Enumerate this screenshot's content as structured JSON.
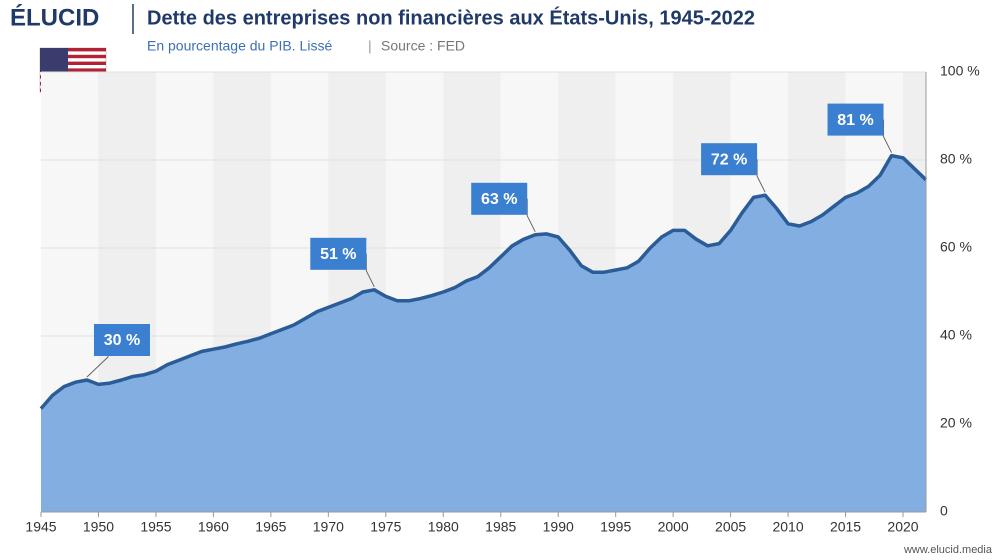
{
  "brand": "ÉLUCID",
  "footer": "www.elucid.media",
  "chart_data": {
    "type": "area",
    "title": "Dette des entreprises non financières aux États-Unis, 1945-2022",
    "subtitle": "En pourcentage du PIB. Lissé",
    "separator": "|",
    "source": "Source : FED",
    "x": [
      1945,
      1946,
      1947,
      1948,
      1949,
      1950,
      1951,
      1952,
      1953,
      1954,
      1955,
      1956,
      1957,
      1958,
      1959,
      1960,
      1961,
      1962,
      1963,
      1964,
      1965,
      1966,
      1967,
      1968,
      1969,
      1970,
      1971,
      1972,
      1973,
      1974,
      1975,
      1976,
      1977,
      1978,
      1979,
      1980,
      1981,
      1982,
      1983,
      1984,
      1985,
      1986,
      1987,
      1988,
      1989,
      1990,
      1991,
      1992,
      1993,
      1994,
      1995,
      1996,
      1997,
      1998,
      1999,
      2000,
      2001,
      2002,
      2003,
      2004,
      2005,
      2006,
      2007,
      2008,
      2009,
      2010,
      2011,
      2012,
      2013,
      2014,
      2015,
      2016,
      2017,
      2018,
      2019,
      2020,
      2021,
      2022
    ],
    "values": [
      23.5,
      26.5,
      28.5,
      29.5,
      30,
      29,
      29.3,
      30,
      30.8,
      31.2,
      32,
      33.5,
      34.5,
      35.5,
      36.5,
      37,
      37.5,
      38.2,
      38.8,
      39.5,
      40.5,
      41.5,
      42.5,
      44,
      45.5,
      46.5,
      47.5,
      48.5,
      50,
      50.5,
      49,
      48,
      48,
      48.5,
      49.2,
      50,
      51,
      52.5,
      53.5,
      55.5,
      58,
      60.5,
      62,
      63,
      63.2,
      62.5,
      59.5,
      56,
      54.5,
      54.5,
      55,
      55.5,
      57,
      60,
      62.5,
      64,
      64,
      62,
      60.5,
      61,
      64,
      68,
      71.5,
      72,
      69,
      65.5,
      65,
      66,
      67.5,
      69.5,
      71.5,
      72.5,
      74,
      76.5,
      81,
      80.5,
      78,
      75.5
    ],
    "value_labels": [
      null,
      null,
      null,
      null,
      "30 %",
      null,
      null,
      null,
      null,
      null,
      null,
      null,
      null,
      null,
      null,
      null,
      null,
      null,
      null,
      null,
      null,
      null,
      null,
      null,
      null,
      null,
      null,
      null,
      null,
      "51 %",
      null,
      null,
      null,
      null,
      null,
      null,
      null,
      null,
      null,
      null,
      null,
      null,
      null,
      "63 %",
      null,
      null,
      null,
      null,
      null,
      null,
      null,
      null,
      null,
      null,
      null,
      null,
      null,
      null,
      null,
      null,
      null,
      null,
      null,
      "72 %",
      null,
      null,
      null,
      null,
      null,
      null,
      null,
      null,
      null,
      null,
      "81 %",
      null,
      null,
      null
    ],
    "fill_color": "#82aee2",
    "line_color": "#2a5c98",
    "label_color": "#3a7fd0",
    "xlim": [
      1945,
      2022
    ],
    "xticks": [
      1945,
      1950,
      1955,
      1960,
      1965,
      1970,
      1975,
      1980,
      1985,
      1990,
      1995,
      2000,
      2005,
      2010,
      2015,
      2020
    ],
    "ylim": [
      0,
      100
    ],
    "yticks": [
      0,
      {
        "value": 20,
        "label": "20 %"
      },
      {
        "value": 40,
        "label": "40 %"
      },
      {
        "value": 60,
        "label": "60 %"
      },
      {
        "value": 80,
        "label": "80 %"
      },
      {
        "value": 100,
        "label": "100 %"
      }
    ]
  }
}
